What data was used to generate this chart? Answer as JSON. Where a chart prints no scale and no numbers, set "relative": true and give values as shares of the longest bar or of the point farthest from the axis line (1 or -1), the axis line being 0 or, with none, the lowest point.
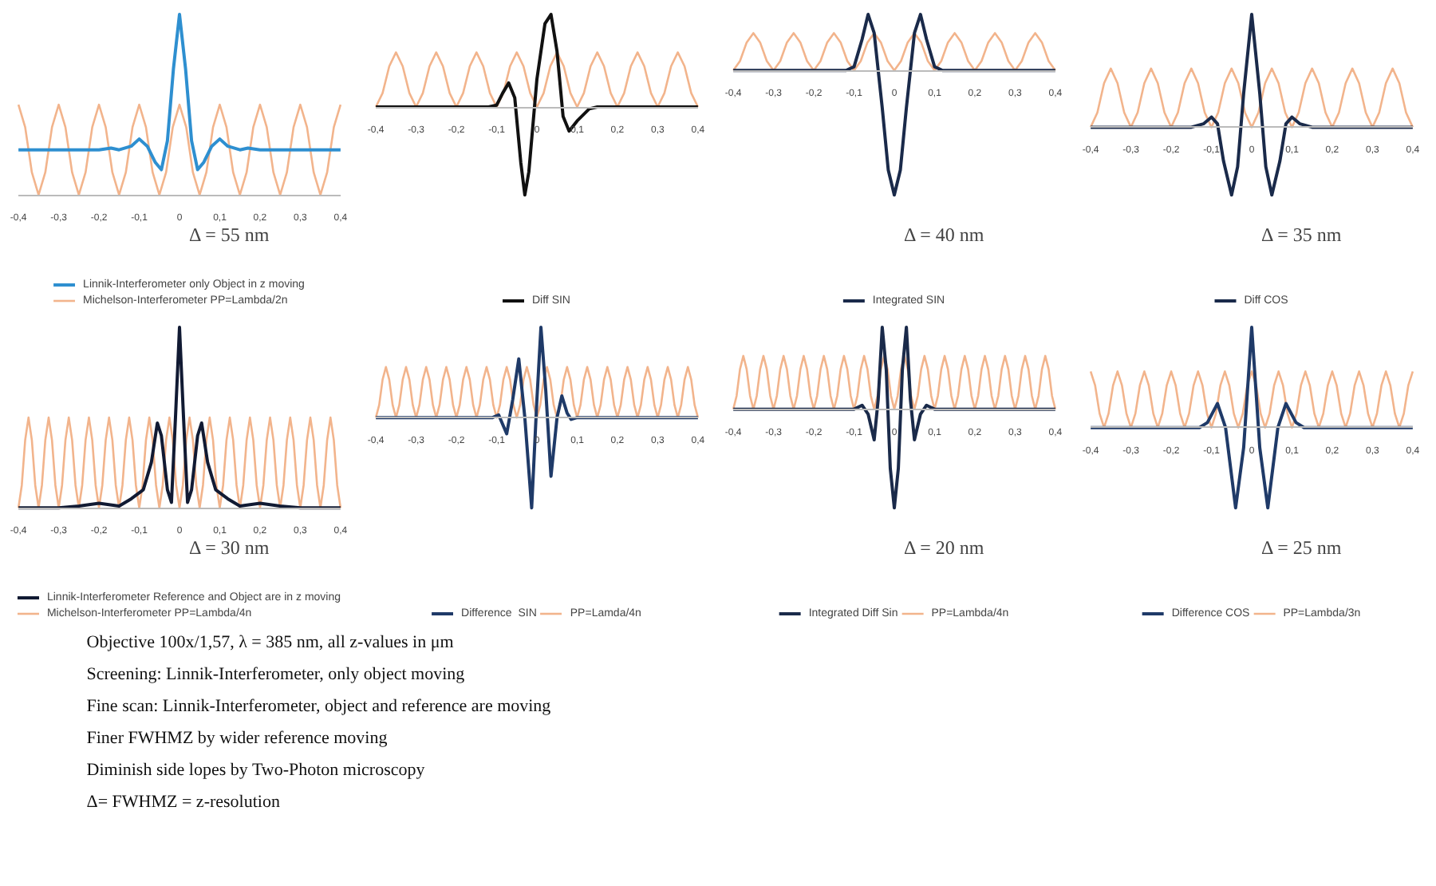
{
  "chart_data": [
    {
      "type": "line",
      "relative": true,
      "legend": "bottom",
      "annotations": [
        "Δ = 55 nm"
      ],
      "xlim": [
        -0.4,
        0.4
      ],
      "xticks": [
        {
          "value": -0.4,
          "label": "-0,4"
        },
        {
          "value": -0.3,
          "label": "-0,3"
        },
        {
          "value": -0.2,
          "label": "-0,2"
        },
        {
          "value": -0.1,
          "label": "-0,1"
        },
        {
          "value": 0,
          "label": "0"
        },
        {
          "value": 0.1,
          "label": "0,1"
        },
        {
          "value": 0.2,
          "label": "0,2"
        },
        {
          "value": 0.3,
          "label": "0,3"
        },
        {
          "value": 0.4,
          "label": "0,4"
        }
      ],
      "x": [
        -0.4,
        -0.3833,
        -0.3667,
        -0.35,
        -0.3333,
        -0.3167,
        -0.3,
        -0.2833,
        -0.2667,
        -0.25,
        -0.2333,
        -0.2167,
        -0.2,
        -0.1833,
        -0.1667,
        -0.15,
        -0.1333,
        -0.1167,
        -0.1,
        -0.0833,
        -0.0667,
        -0.05,
        -0.0333,
        -0.0167,
        0,
        0.0167,
        0.0333,
        0.05,
        0.0667,
        0.0833,
        0.1,
        0.1167,
        0.1333,
        0.15,
        0.1667,
        0.1833,
        0.2,
        0.2167,
        0.2333,
        0.25,
        0.2667,
        0.2833,
        0.3,
        0.3167,
        0.3333,
        0.35,
        0.3667,
        0.3833,
        0.4
      ],
      "series": [
        {
          "name": "Linnik-Interferometer only Object in z moving",
          "color": "#2e8fd0",
          "x": [
            -0.4,
            -0.2,
            -0.17,
            -0.15,
            -0.12,
            -0.1,
            -0.08,
            -0.06,
            -0.045,
            -0.03,
            -0.015,
            0,
            0.015,
            0.03,
            0.045,
            0.06,
            0.08,
            0.1,
            0.12,
            0.15,
            0.17,
            0.2,
            0.4
          ],
          "values": [
            0.25,
            0.25,
            0.26,
            0.25,
            0.27,
            0.31,
            0.27,
            0.18,
            0.14,
            0.3,
            0.7,
            1,
            0.7,
            0.3,
            0.14,
            0.18,
            0.27,
            0.31,
            0.27,
            0.25,
            0.26,
            0.25,
            0.25
          ]
        },
        {
          "name": "Michelson-Interferometer PP=Lambda/2n",
          "color": "#f2b48c",
          "values": [
            0.5,
            0.375,
            0.125,
            0,
            0.125,
            0.375,
            0.5,
            0.375,
            0.125,
            0,
            0.125,
            0.375,
            0.5,
            0.375,
            0.125,
            0,
            0.125,
            0.375,
            0.5,
            0.375,
            0.125,
            0,
            0.125,
            0.375,
            0.5,
            0.375,
            0.125,
            0,
            0.125,
            0.375,
            0.5,
            0.375,
            0.125,
            0,
            0.125,
            0.375,
            0.5,
            0.375,
            0.125,
            0,
            0.125,
            0.375,
            0.5,
            0.375,
            0.125,
            0,
            0.125,
            0.375,
            0.5
          ]
        }
      ]
    },
    {
      "type": "line",
      "relative": true,
      "legend": "bottom",
      "xlim": [
        -0.4,
        0.4
      ],
      "xticks": [
        {
          "value": -0.4,
          "label": "-0,4"
        },
        {
          "value": -0.3,
          "label": "-0,3"
        },
        {
          "value": -0.2,
          "label": "-0,2"
        },
        {
          "value": -0.1,
          "label": "-0,1"
        },
        {
          "value": 0,
          "label": "0"
        },
        {
          "value": 0.1,
          "label": "0,1"
        },
        {
          "value": 0.2,
          "label": "0,2"
        },
        {
          "value": 0.3,
          "label": "0,3"
        },
        {
          "value": 0.4,
          "label": "0,4"
        }
      ],
      "x": [
        -0.4,
        -0.3833,
        -0.3667,
        -0.35,
        -0.3333,
        -0.3167,
        -0.3,
        -0.2833,
        -0.2667,
        -0.25,
        -0.2333,
        -0.2167,
        -0.2,
        -0.1833,
        -0.1667,
        -0.15,
        -0.1333,
        -0.1167,
        -0.1,
        -0.0833,
        -0.0667,
        -0.05,
        -0.0333,
        -0.0167,
        0,
        0.0167,
        0.0333,
        0.05,
        0.0667,
        0.0833,
        0.1,
        0.1167,
        0.1333,
        0.15,
        0.1667,
        0.1833,
        0.2,
        0.2167,
        0.2333,
        0.25,
        0.2667,
        0.2833,
        0.3,
        0.3167,
        0.3333,
        0.35,
        0.3667,
        0.3833,
        0.4
      ],
      "series": [
        {
          "name": "Diff SIN",
          "color": "#111111",
          "x": [
            -0.4,
            -0.12,
            -0.1,
            -0.085,
            -0.07,
            -0.055,
            -0.04,
            -0.03,
            -0.02,
            0,
            0.02,
            0.035,
            0.05,
            0.065,
            0.08,
            0.1,
            0.13,
            0.15,
            0.4
          ],
          "values": [
            0,
            0,
            0.02,
            0.15,
            0.26,
            0.1,
            -0.6,
            -0.95,
            -0.7,
            0.3,
            0.9,
            1,
            0.6,
            -0.1,
            -0.26,
            -0.15,
            -0.02,
            0,
            0
          ]
        },
        {
          "color": "#f2b48c",
          "values": [
            0,
            0.15,
            0.44,
            0.59,
            0.44,
            0.15,
            0,
            0.15,
            0.44,
            0.59,
            0.44,
            0.15,
            0,
            0.15,
            0.44,
            0.59,
            0.44,
            0.15,
            0,
            0.15,
            0.44,
            0.59,
            0.44,
            0.15,
            0,
            0.15,
            0.44,
            0.59,
            0.44,
            0.15,
            0,
            0.15,
            0.44,
            0.59,
            0.44,
            0.15,
            0,
            0.15,
            0.44,
            0.59,
            0.44,
            0.15,
            0,
            0.15,
            0.44,
            0.59,
            0.44,
            0.15,
            0
          ]
        }
      ]
    },
    {
      "type": "line",
      "relative": true,
      "legend": "bottom",
      "annotations": [
        "Δ = 40 nm"
      ],
      "xlim": [
        -0.4,
        0.4
      ],
      "xticks": [
        {
          "value": -0.4,
          "label": "-0,4"
        },
        {
          "value": -0.3,
          "label": "-0,3"
        },
        {
          "value": -0.2,
          "label": "-0,2"
        },
        {
          "value": -0.1,
          "label": "-0,1"
        },
        {
          "value": 0,
          "label": "0"
        },
        {
          "value": 0.1,
          "label": "0,1"
        },
        {
          "value": 0.2,
          "label": "0,2"
        },
        {
          "value": 0.3,
          "label": "0,3"
        },
        {
          "value": 0.4,
          "label": "0,4"
        }
      ],
      "x": [
        -0.4,
        -0.3833,
        -0.3667,
        -0.35,
        -0.3333,
        -0.3167,
        -0.3,
        -0.2833,
        -0.2667,
        -0.25,
        -0.2333,
        -0.2167,
        -0.2,
        -0.1833,
        -0.1667,
        -0.15,
        -0.1333,
        -0.1167,
        -0.1,
        -0.0833,
        -0.0667,
        -0.05,
        -0.0333,
        -0.0167,
        0,
        0.0167,
        0.0333,
        0.05,
        0.0667,
        0.0833,
        0.1,
        0.1167,
        0.1333,
        0.15,
        0.1667,
        0.1833,
        0.2,
        0.2167,
        0.2333,
        0.25,
        0.2667,
        0.2833,
        0.3,
        0.3167,
        0.3333,
        0.35,
        0.3667,
        0.3833,
        0.4
      ],
      "series": [
        {
          "name": "Integrated SIN",
          "color": "#1a2a4a",
          "x": [
            -0.4,
            -0.12,
            -0.1,
            -0.08,
            -0.065,
            -0.05,
            -0.03,
            -0.015,
            0,
            0.015,
            0.03,
            0.05,
            0.065,
            0.08,
            0.1,
            0.12,
            0.4
          ],
          "values": [
            0,
            0,
            0.03,
            0.25,
            0.45,
            0.3,
            -0.3,
            -0.8,
            -1,
            -0.8,
            -0.3,
            0.3,
            0.45,
            0.25,
            0.03,
            0,
            0
          ]
        },
        {
          "color": "#f2b48c",
          "values": [
            0,
            0.075,
            0.225,
            0.3,
            0.225,
            0.075,
            0,
            0.075,
            0.225,
            0.3,
            0.225,
            0.075,
            0,
            0.075,
            0.225,
            0.3,
            0.225,
            0.075,
            0,
            0.075,
            0.225,
            0.3,
            0.225,
            0.075,
            0,
            0.075,
            0.225,
            0.3,
            0.225,
            0.075,
            0,
            0.075,
            0.225,
            0.3,
            0.225,
            0.075,
            0,
            0.075,
            0.225,
            0.3,
            0.225,
            0.075,
            0,
            0.075,
            0.225,
            0.3,
            0.225,
            0.075,
            0
          ]
        }
      ]
    },
    {
      "type": "line",
      "relative": true,
      "legend": "bottom",
      "annotations": [
        "Δ = 35 nm"
      ],
      "xlim": [
        -0.4,
        0.4
      ],
      "xticks": [
        {
          "value": -0.4,
          "label": "-0,4"
        },
        {
          "value": -0.3,
          "label": "-0,3"
        },
        {
          "value": -0.2,
          "label": "-0,2"
        },
        {
          "value": -0.1,
          "label": "-0,1"
        },
        {
          "value": 0,
          "label": "0"
        },
        {
          "value": 0.1,
          "label": "0,1"
        },
        {
          "value": 0.2,
          "label": "0,2"
        },
        {
          "value": 0.3,
          "label": "0,3"
        },
        {
          "value": 0.4,
          "label": "0,4"
        }
      ],
      "x": [
        -0.4,
        -0.3833,
        -0.3667,
        -0.35,
        -0.3333,
        -0.3167,
        -0.3,
        -0.2833,
        -0.2667,
        -0.25,
        -0.2333,
        -0.2167,
        -0.2,
        -0.1833,
        -0.1667,
        -0.15,
        -0.1333,
        -0.1167,
        -0.1,
        -0.0833,
        -0.0667,
        -0.05,
        -0.0333,
        -0.0167,
        0,
        0.0167,
        0.0333,
        0.05,
        0.0667,
        0.0833,
        0.1,
        0.1167,
        0.1333,
        0.15,
        0.1667,
        0.1833,
        0.2,
        0.2167,
        0.2333,
        0.25,
        0.2667,
        0.2833,
        0.3,
        0.3167,
        0.3333,
        0.35,
        0.3667,
        0.3833,
        0.4
      ],
      "series": [
        {
          "name": "Diff COS",
          "color": "#1a2a4a",
          "x": [
            -0.4,
            -0.15,
            -0.12,
            -0.1,
            -0.085,
            -0.07,
            -0.05,
            -0.035,
            -0.02,
            0,
            0.02,
            0.035,
            0.05,
            0.07,
            0.085,
            0.1,
            0.12,
            0.15,
            0.4
          ],
          "values": [
            0,
            0,
            0.03,
            0.09,
            0.03,
            -0.3,
            -0.6,
            -0.35,
            0.3,
            1,
            0.3,
            -0.35,
            -0.6,
            -0.3,
            0.03,
            0.09,
            0.03,
            0,
            0
          ]
        },
        {
          "color": "#f2b48c",
          "values": [
            0,
            0.13,
            0.39,
            0.52,
            0.39,
            0.13,
            0,
            0.13,
            0.39,
            0.52,
            0.39,
            0.13,
            0,
            0.13,
            0.39,
            0.52,
            0.39,
            0.13,
            0,
            0.13,
            0.39,
            0.52,
            0.39,
            0.13,
            0,
            0.13,
            0.39,
            0.52,
            0.39,
            0.13,
            0,
            0.13,
            0.39,
            0.52,
            0.39,
            0.13,
            0,
            0.13,
            0.39,
            0.52,
            0.39,
            0.13,
            0,
            0.13,
            0.39,
            0.52,
            0.39,
            0.13,
            0
          ]
        }
      ]
    },
    {
      "type": "line",
      "relative": true,
      "legend": "bottom",
      "annotations": [
        "Δ = 30 nm"
      ],
      "xlim": [
        -0.4,
        0.4
      ],
      "xticks": [
        {
          "value": -0.4,
          "label": "-0,4"
        },
        {
          "value": -0.3,
          "label": "-0,3"
        },
        {
          "value": -0.2,
          "label": "-0,2"
        },
        {
          "value": -0.1,
          "label": "-0,1"
        },
        {
          "value": 0,
          "label": "0"
        },
        {
          "value": 0.1,
          "label": "0,1"
        },
        {
          "value": 0.2,
          "label": "0,2"
        },
        {
          "value": 0.3,
          "label": "0,3"
        },
        {
          "value": 0.4,
          "label": "0,4"
        }
      ],
      "x": [
        -0.4,
        -0.3917,
        -0.3833,
        -0.375,
        -0.3667,
        -0.3583,
        -0.35,
        -0.3417,
        -0.3333,
        -0.325,
        -0.3167,
        -0.3083,
        -0.3,
        -0.2917,
        -0.2833,
        -0.275,
        -0.2667,
        -0.2583,
        -0.25,
        -0.2417,
        -0.2333,
        -0.225,
        -0.2167,
        -0.2083,
        -0.2,
        -0.1917,
        -0.1833,
        -0.175,
        -0.1667,
        -0.1583,
        -0.15,
        -0.1417,
        -0.1333,
        -0.125,
        -0.1167,
        -0.1083,
        -0.1,
        -0.0917,
        -0.0833,
        -0.075,
        -0.0667,
        -0.0583,
        -0.05,
        -0.0417,
        -0.0333,
        -0.025,
        -0.0167,
        -0.0083,
        0,
        0.0083,
        0.0167,
        0.025,
        0.0333,
        0.0417,
        0.05,
        0.0583,
        0.0667,
        0.075,
        0.0833,
        0.0917,
        0.1,
        0.1083,
        0.1167,
        0.125,
        0.1333,
        0.1417,
        0.15,
        0.1583,
        0.1667,
        0.175,
        0.1833,
        0.1917,
        0.2,
        0.2083,
        0.2167,
        0.225,
        0.2333,
        0.2417,
        0.25,
        0.2583,
        0.2667,
        0.275,
        0.2833,
        0.2917,
        0.3,
        0.3083,
        0.3167,
        0.325,
        0.3333,
        0.3417,
        0.35,
        0.3583,
        0.3667,
        0.375,
        0.3833,
        0.3917,
        0.4
      ],
      "series": [
        {
          "name": "Linnik-Interferometer Reference and Object are in z moving",
          "color": "#111a33",
          "x": [
            -0.4,
            -0.3,
            -0.25,
            -0.2,
            -0.15,
            -0.12,
            -0.09,
            -0.07,
            -0.055,
            -0.045,
            -0.03,
            -0.02,
            -0.01,
            0,
            0.01,
            0.02,
            0.03,
            0.045,
            0.055,
            0.07,
            0.09,
            0.12,
            0.15,
            0.2,
            0.25,
            0.3,
            0.4
          ],
          "values": [
            0,
            0,
            0.01,
            0.025,
            0.01,
            0.05,
            0.1,
            0.25,
            0.47,
            0.4,
            0.1,
            0.03,
            0.5,
            1,
            0.5,
            0.03,
            0.1,
            0.4,
            0.47,
            0.25,
            0.1,
            0.05,
            0.01,
            0.025,
            0.01,
            0,
            0
          ]
        },
        {
          "name": "Michelson-Interferometer PP=Lambda/4n",
          "color": "#f2b48c",
          "values": [
            0,
            0.125,
            0.375,
            0.5,
            0.375,
            0.125,
            0,
            0.125,
            0.375,
            0.5,
            0.375,
            0.125,
            0,
            0.125,
            0.375,
            0.5,
            0.375,
            0.125,
            0,
            0.125,
            0.375,
            0.5,
            0.375,
            0.125,
            0,
            0.125,
            0.375,
            0.5,
            0.375,
            0.125,
            0,
            0.125,
            0.375,
            0.5,
            0.375,
            0.125,
            0,
            0.125,
            0.375,
            0.5,
            0.375,
            0.125,
            0,
            0.125,
            0.375,
            0.5,
            0.375,
            0.125,
            0,
            0.125,
            0.375,
            0.5,
            0.375,
            0.125,
            0,
            0.125,
            0.375,
            0.5,
            0.375,
            0.125,
            0,
            0.125,
            0.375,
            0.5,
            0.375,
            0.125,
            0,
            0.125,
            0.375,
            0.5,
            0.375,
            0.125,
            0,
            0.125,
            0.375,
            0.5,
            0.375,
            0.125,
            0,
            0.125,
            0.375,
            0.5,
            0.375,
            0.125,
            0,
            0.125,
            0.375,
            0.5,
            0.375,
            0.125,
            0,
            0.125,
            0.375,
            0.5,
            0.375,
            0.125,
            0
          ]
        }
      ]
    },
    {
      "type": "line",
      "relative": true,
      "legend": "bottom",
      "xlim": [
        -0.4,
        0.4
      ],
      "xticks": [
        {
          "value": -0.4,
          "label": "-0,4"
        },
        {
          "value": -0.3,
          "label": "-0,3"
        },
        {
          "value": -0.2,
          "label": "-0,2"
        },
        {
          "value": -0.1,
          "label": "-0,1"
        },
        {
          "value": 0,
          "label": "0"
        },
        {
          "value": 0.1,
          "label": "0,1"
        },
        {
          "value": 0.2,
          "label": "0,2"
        },
        {
          "value": 0.3,
          "label": "0,3"
        },
        {
          "value": 0.4,
          "label": "0,4"
        }
      ],
      "x": [
        -0.4,
        -0.3917,
        -0.3833,
        -0.375,
        -0.3667,
        -0.3583,
        -0.35,
        -0.3417,
        -0.3333,
        -0.325,
        -0.3167,
        -0.3083,
        -0.3,
        -0.2917,
        -0.2833,
        -0.275,
        -0.2667,
        -0.2583,
        -0.25,
        -0.2417,
        -0.2333,
        -0.225,
        -0.2167,
        -0.2083,
        -0.2,
        -0.1917,
        -0.1833,
        -0.175,
        -0.1667,
        -0.1583,
        -0.15,
        -0.1417,
        -0.1333,
        -0.125,
        -0.1167,
        -0.1083,
        -0.1,
        -0.0917,
        -0.0833,
        -0.075,
        -0.0667,
        -0.0583,
        -0.05,
        -0.0417,
        -0.0333,
        -0.025,
        -0.0167,
        -0.0083,
        0,
        0.0083,
        0.0167,
        0.025,
        0.0333,
        0.0417,
        0.05,
        0.0583,
        0.0667,
        0.075,
        0.0833,
        0.0917,
        0.1,
        0.1083,
        0.1167,
        0.125,
        0.1333,
        0.1417,
        0.15,
        0.1583,
        0.1667,
        0.175,
        0.1833,
        0.1917,
        0.2,
        0.2083,
        0.2167,
        0.225,
        0.2333,
        0.2417,
        0.25,
        0.2583,
        0.2667,
        0.275,
        0.2833,
        0.2917,
        0.3,
        0.3083,
        0.3167,
        0.325,
        0.3333,
        0.3417,
        0.35,
        0.3583,
        0.3667,
        0.375,
        0.3833,
        0.3917,
        0.4
      ],
      "series": [
        {
          "name": "Difference  SIN",
          "color": "#1f3a68",
          "x": [
            -0.4,
            -0.11,
            -0.095,
            -0.075,
            -0.06,
            -0.045,
            -0.03,
            -0.013,
            0,
            0.01,
            0.022,
            0.035,
            0.05,
            0.062,
            0.075,
            0.085,
            0.1,
            0.4
          ],
          "values": [
            0,
            0,
            0.03,
            -0.18,
            0.2,
            0.65,
            0,
            -1,
            0.2,
            1,
            0.3,
            -0.65,
            0,
            0.24,
            0.05,
            -0.02,
            0,
            0
          ]
        },
        {
          "name": "PP=Lamda/4n",
          "color": "#f2b48c",
          "values": [
            0,
            0.14,
            0.42,
            0.56,
            0.42,
            0.14,
            0,
            0.14,
            0.42,
            0.56,
            0.42,
            0.14,
            0,
            0.14,
            0.42,
            0.56,
            0.42,
            0.14,
            0,
            0.14,
            0.42,
            0.56,
            0.42,
            0.14,
            0,
            0.14,
            0.42,
            0.56,
            0.42,
            0.14,
            0,
            0.14,
            0.42,
            0.56,
            0.42,
            0.14,
            0,
            0.14,
            0.42,
            0.56,
            0.42,
            0.14,
            0,
            0.14,
            0.42,
            0.56,
            0.42,
            0.14,
            0,
            0.14,
            0.42,
            0.56,
            0.42,
            0.14,
            0,
            0.14,
            0.42,
            0.56,
            0.42,
            0.14,
            0,
            0.14,
            0.42,
            0.56,
            0.42,
            0.14,
            0,
            0.14,
            0.42,
            0.56,
            0.42,
            0.14,
            0,
            0.14,
            0.42,
            0.56,
            0.42,
            0.14,
            0,
            0.14,
            0.42,
            0.56,
            0.42,
            0.14,
            0,
            0.14,
            0.42,
            0.56,
            0.42,
            0.14,
            0,
            0.14,
            0.42,
            0.56,
            0.42,
            0.14,
            0
          ]
        }
      ]
    },
    {
      "type": "line",
      "relative": true,
      "legend": "bottom",
      "annotations": [
        "Δ = 20 nm"
      ],
      "xlim": [
        -0.4,
        0.4
      ],
      "xticks": [
        {
          "value": -0.4,
          "label": "-0,4"
        },
        {
          "value": -0.3,
          "label": "-0,3"
        },
        {
          "value": -0.2,
          "label": "-0,2"
        },
        {
          "value": -0.1,
          "label": "-0,1"
        },
        {
          "value": 0,
          "label": "0"
        },
        {
          "value": 0.1,
          "label": "0,1"
        },
        {
          "value": 0.2,
          "label": "0,2"
        },
        {
          "value": 0.3,
          "label": "0,3"
        },
        {
          "value": 0.4,
          "label": "0,4"
        }
      ],
      "x": [
        -0.4,
        -0.3917,
        -0.3833,
        -0.375,
        -0.3667,
        -0.3583,
        -0.35,
        -0.3417,
        -0.3333,
        -0.325,
        -0.3167,
        -0.3083,
        -0.3,
        -0.2917,
        -0.2833,
        -0.275,
        -0.2667,
        -0.2583,
        -0.25,
        -0.2417,
        -0.2333,
        -0.225,
        -0.2167,
        -0.2083,
        -0.2,
        -0.1917,
        -0.1833,
        -0.175,
        -0.1667,
        -0.1583,
        -0.15,
        -0.1417,
        -0.1333,
        -0.125,
        -0.1167,
        -0.1083,
        -0.1,
        -0.0917,
        -0.0833,
        -0.075,
        -0.0667,
        -0.0583,
        -0.05,
        -0.0417,
        -0.0333,
        -0.025,
        -0.0167,
        -0.0083,
        0,
        0.0083,
        0.0167,
        0.025,
        0.0333,
        0.0417,
        0.05,
        0.0583,
        0.0667,
        0.075,
        0.0833,
        0.0917,
        0.1,
        0.1083,
        0.1167,
        0.125,
        0.1333,
        0.1417,
        0.15,
        0.1583,
        0.1667,
        0.175,
        0.1833,
        0.1917,
        0.2,
        0.2083,
        0.2167,
        0.225,
        0.2333,
        0.2417,
        0.25,
        0.2583,
        0.2667,
        0.275,
        0.2833,
        0.2917,
        0.3,
        0.3083,
        0.3167,
        0.325,
        0.3333,
        0.3417,
        0.35,
        0.3583,
        0.3667,
        0.375,
        0.3833,
        0.3917,
        0.4
      ],
      "series": [
        {
          "name": "Integrated Diff Sin",
          "color": "#1a2a4a",
          "x": [
            -0.4,
            -0.1,
            -0.08,
            -0.065,
            -0.05,
            -0.04,
            -0.03,
            -0.02,
            -0.01,
            0,
            0.01,
            0.02,
            0.03,
            0.04,
            0.05,
            0.065,
            0.08,
            0.1,
            0.4
          ],
          "values": [
            0,
            0,
            0.04,
            -0.05,
            -0.31,
            0.1,
            0.83,
            0.4,
            -0.6,
            -1,
            -0.6,
            0.4,
            0.83,
            0.1,
            -0.31,
            -0.05,
            0.04,
            0,
            0
          ]
        },
        {
          "name": "PP=Lambda/4n",
          "color": "#f2b48c",
          "values": [
            0,
            0.135,
            0.405,
            0.54,
            0.405,
            0.135,
            0,
            0.135,
            0.405,
            0.54,
            0.405,
            0.135,
            0,
            0.135,
            0.405,
            0.54,
            0.405,
            0.135,
            0,
            0.135,
            0.405,
            0.54,
            0.405,
            0.135,
            0,
            0.135,
            0.405,
            0.54,
            0.405,
            0.135,
            0,
            0.135,
            0.405,
            0.54,
            0.405,
            0.135,
            0,
            0.135,
            0.405,
            0.54,
            0.405,
            0.135,
            0,
            0.135,
            0.405,
            0.54,
            0.405,
            0.135,
            0,
            0.135,
            0.405,
            0.54,
            0.405,
            0.135,
            0,
            0.135,
            0.405,
            0.54,
            0.405,
            0.135,
            0,
            0.135,
            0.405,
            0.54,
            0.405,
            0.135,
            0,
            0.135,
            0.405,
            0.54,
            0.405,
            0.135,
            0,
            0.135,
            0.405,
            0.54,
            0.405,
            0.135,
            0,
            0.135,
            0.405,
            0.54,
            0.405,
            0.135,
            0,
            0.135,
            0.405,
            0.54,
            0.405,
            0.135,
            0,
            0.135,
            0.405,
            0.54,
            0.405,
            0.135,
            0
          ]
        }
      ]
    },
    {
      "type": "line",
      "relative": true,
      "legend": "bottom",
      "annotations": [
        "Δ = 25 nm"
      ],
      "xlim": [
        -0.4,
        0.4
      ],
      "xticks": [
        {
          "value": -0.4,
          "label": "-0,4"
        },
        {
          "value": -0.3,
          "label": "-0,3"
        },
        {
          "value": -0.2,
          "label": "-0,2"
        },
        {
          "value": -0.1,
          "label": "-0,1"
        },
        {
          "value": 0,
          "label": "0"
        },
        {
          "value": 0.1,
          "label": "0,1"
        },
        {
          "value": 0.2,
          "label": "0,2"
        },
        {
          "value": 0.3,
          "label": "0,3"
        },
        {
          "value": 0.4,
          "label": "0,4"
        }
      ],
      "x": [
        -0.4,
        -0.3889,
        -0.3778,
        -0.3667,
        -0.3556,
        -0.3444,
        -0.3333,
        -0.3222,
        -0.3111,
        -0.3,
        -0.2889,
        -0.2778,
        -0.2667,
        -0.2556,
        -0.2444,
        -0.2333,
        -0.2222,
        -0.2111,
        -0.2,
        -0.1889,
        -0.1778,
        -0.1667,
        -0.1556,
        -0.1444,
        -0.1333,
        -0.1222,
        -0.1111,
        -0.1,
        -0.0889,
        -0.0778,
        -0.0667,
        -0.0556,
        -0.0444,
        -0.0333,
        -0.0222,
        -0.0111,
        0,
        0.0111,
        0.0222,
        0.0333,
        0.0444,
        0.0556,
        0.0667,
        0.0778,
        0.0889,
        0.1,
        0.1111,
        0.1222,
        0.1333,
        0.1444,
        0.1556,
        0.1667,
        0.1778,
        0.1889,
        0.2,
        0.2111,
        0.2222,
        0.2333,
        0.2444,
        0.2556,
        0.2667,
        0.2778,
        0.2889,
        0.3,
        0.3111,
        0.3222,
        0.3333,
        0.3444,
        0.3556,
        0.3667,
        0.3778,
        0.3889,
        0.4
      ],
      "series": [
        {
          "name": "Difference COS",
          "color": "#1f3a68",
          "x": [
            -0.4,
            -0.13,
            -0.11,
            -0.085,
            -0.065,
            -0.04,
            -0.02,
            0,
            0.02,
            0.04,
            0.065,
            0.085,
            0.11,
            0.13,
            0.4
          ],
          "values": [
            0,
            0,
            0.05,
            0.24,
            0,
            -0.8,
            -0.2,
            1,
            -0.2,
            -0.8,
            0,
            0.24,
            0.05,
            0,
            0
          ]
        },
        {
          "name": "PP=Lambda/3n",
          "color": "#f2b48c",
          "values": [
            0.56,
            0.42,
            0.14,
            0,
            0.14,
            0.42,
            0.56,
            0.42,
            0.14,
            0,
            0.14,
            0.42,
            0.56,
            0.42,
            0.14,
            0,
            0.14,
            0.42,
            0.56,
            0.42,
            0.14,
            0,
            0.14,
            0.42,
            0.56,
            0.42,
            0.14,
            0,
            0.14,
            0.42,
            0.56,
            0.42,
            0.14,
            0,
            0.14,
            0.42,
            0.56,
            0.42,
            0.14,
            0,
            0.14,
            0.42,
            0.56,
            0.42,
            0.14,
            0,
            0.14,
            0.42,
            0.56,
            0.42,
            0.14,
            0,
            0.14,
            0.42,
            0.56,
            0.42,
            0.14,
            0,
            0.14,
            0.42,
            0.56,
            0.42,
            0.14,
            0,
            0.14,
            0.42,
            0.56,
            0.42,
            0.14,
            0,
            0.14,
            0.42,
            0.56
          ]
        }
      ]
    },
    {
      "type": "other",
      "annotations": [
        "Objective 100x/1,57,  λ = 385 nm, all z-values in μm",
        "Screening: Linnik-Interferometer, only object moving",
        "Fine scan: Linnik-Interferometer, object and reference are moving",
        "Finer FWHMZ by wider reference moving",
        "Diminish side lopes by Two-Photon microscopy",
        "Δ= FWHMZ = z-resolution"
      ]
    }
  ]
}
